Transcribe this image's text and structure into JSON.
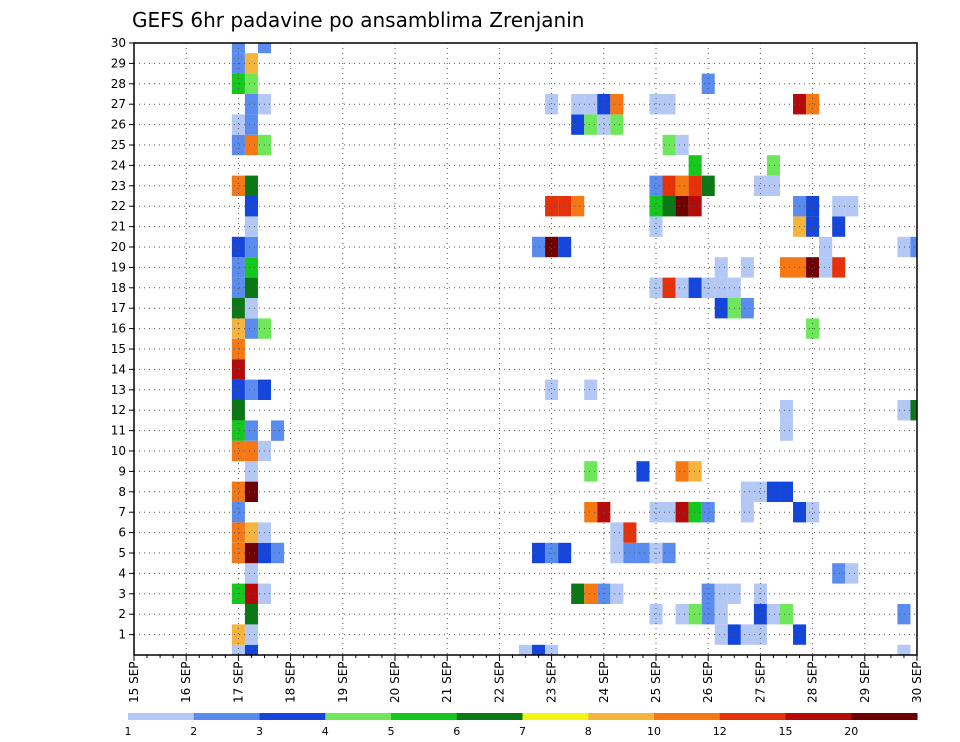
{
  "chart_data": {
    "type": "heatmap",
    "title": "GEFS 6hr padavine po ansamblima Zrenjanin",
    "xlabel": "",
    "ylabel": "",
    "x_ticks": [
      "15 SEP",
      "16 SEP",
      "17 SEP",
      "18 SEP",
      "19 SEP",
      "20 SEP",
      "21 SEP",
      "22 SEP",
      "23 SEP",
      "24 SEP",
      "25 SEP",
      "26 SEP",
      "27 SEP",
      "28 SEP",
      "29 SEP",
      "30 SEP"
    ],
    "x_range": [
      0,
      60
    ],
    "y_ticks": [
      "1",
      "2",
      "3",
      "4",
      "5",
      "6",
      "7",
      "8",
      "9",
      "10",
      "11",
      "12",
      "13",
      "14",
      "15",
      "16",
      "17",
      "18",
      "19",
      "20",
      "21",
      "22",
      "23",
      "24",
      "25",
      "26",
      "27",
      "28",
      "29",
      "30"
    ],
    "y_range": [
      0,
      30
    ],
    "grid": true,
    "legend_placement": "bottom",
    "legend": {
      "bounds": [
        "1",
        "2",
        "3",
        "4",
        "5",
        "6",
        "7",
        "8",
        "10",
        "12",
        "15",
        "20"
      ],
      "colors": [
        "#b4c8f5",
        "#5a8cf0",
        "#1446dc",
        "#6ee85a",
        "#14c81e",
        "#0a7814",
        "#f5f514",
        "#f5b43c",
        "#f57814",
        "#e6320a",
        "#b40a0a",
        "#6e0000"
      ]
    },
    "cells": [
      {
        "x": 8,
        "y": 0,
        "v": 1
      },
      {
        "x": 9,
        "y": 0,
        "v": 3
      },
      {
        "x": 8,
        "y": 1,
        "v": 8
      },
      {
        "x": 9,
        "y": 1,
        "v": 1
      },
      {
        "x": 9,
        "y": 2,
        "v": 6
      },
      {
        "x": 8,
        "y": 3,
        "v": 5
      },
      {
        "x": 9,
        "y": 3,
        "v": 15
      },
      {
        "x": 10,
        "y": 3,
        "v": 1
      },
      {
        "x": 9,
        "y": 4,
        "v": 1
      },
      {
        "x": 8,
        "y": 5,
        "v": 10
      },
      {
        "x": 9,
        "y": 5,
        "v": 20
      },
      {
        "x": 10,
        "y": 5,
        "v": 3
      },
      {
        "x": 11,
        "y": 5,
        "v": 2
      },
      {
        "x": 8,
        "y": 6,
        "v": 10
      },
      {
        "x": 9,
        "y": 6,
        "v": 8
      },
      {
        "x": 10,
        "y": 6,
        "v": 1
      },
      {
        "x": 8,
        "y": 7,
        "v": 2
      },
      {
        "x": 8,
        "y": 8,
        "v": 10
      },
      {
        "x": 9,
        "y": 8,
        "v": 20
      },
      {
        "x": 9,
        "y": 9,
        "v": 1
      },
      {
        "x": 8,
        "y": 10,
        "v": 10
      },
      {
        "x": 9,
        "y": 10,
        "v": 10
      },
      {
        "x": 10,
        "y": 10,
        "v": 1
      },
      {
        "x": 8,
        "y": 11,
        "v": 5
      },
      {
        "x": 9,
        "y": 11,
        "v": 2
      },
      {
        "x": 11,
        "y": 11,
        "v": 2
      },
      {
        "x": 8,
        "y": 12,
        "v": 6
      },
      {
        "x": 8,
        "y": 13,
        "v": 3
      },
      {
        "x": 9,
        "y": 13,
        "v": 2
      },
      {
        "x": 10,
        "y": 13,
        "v": 3
      },
      {
        "x": 8,
        "y": 14,
        "v": 15
      },
      {
        "x": 8,
        "y": 15,
        "v": 10
      },
      {
        "x": 8,
        "y": 16,
        "v": 8
      },
      {
        "x": 9,
        "y": 16,
        "v": 2
      },
      {
        "x": 10,
        "y": 16,
        "v": 4
      },
      {
        "x": 8,
        "y": 17,
        "v": 6
      },
      {
        "x": 9,
        "y": 17,
        "v": 1
      },
      {
        "x": 8,
        "y": 18,
        "v": 2
      },
      {
        "x": 9,
        "y": 18,
        "v": 6
      },
      {
        "x": 8,
        "y": 19,
        "v": 2
      },
      {
        "x": 9,
        "y": 19,
        "v": 5
      },
      {
        "x": 8,
        "y": 20,
        "v": 3
      },
      {
        "x": 9,
        "y": 20,
        "v": 2
      },
      {
        "x": 9,
        "y": 21,
        "v": 1
      },
      {
        "x": 9,
        "y": 22,
        "v": 3
      },
      {
        "x": 8,
        "y": 23,
        "v": 10
      },
      {
        "x": 9,
        "y": 23,
        "v": 6
      },
      {
        "x": 8,
        "y": 25,
        "v": 2
      },
      {
        "x": 9,
        "y": 25,
        "v": 10
      },
      {
        "x": 10,
        "y": 25,
        "v": 4
      },
      {
        "x": 8,
        "y": 26,
        "v": 1
      },
      {
        "x": 9,
        "y": 26,
        "v": 2
      },
      {
        "x": 9,
        "y": 27,
        "v": 2
      },
      {
        "x": 10,
        "y": 27,
        "v": 1
      },
      {
        "x": 8,
        "y": 28,
        "v": 5
      },
      {
        "x": 9,
        "y": 28,
        "v": 4
      },
      {
        "x": 8,
        "y": 29,
        "v": 2
      },
      {
        "x": 9,
        "y": 29,
        "v": 8
      },
      {
        "x": 8,
        "y": 30,
        "v": 2
      },
      {
        "x": 10,
        "y": 30,
        "v": 2
      },
      {
        "x": 30,
        "y": 0,
        "v": 1
      },
      {
        "x": 31,
        "y": 0,
        "v": 3
      },
      {
        "x": 32,
        "y": 0,
        "v": 1
      },
      {
        "x": 31,
        "y": 5,
        "v": 3
      },
      {
        "x": 32,
        "y": 5,
        "v": 2
      },
      {
        "x": 33,
        "y": 5,
        "v": 3
      },
      {
        "x": 32,
        "y": 13,
        "v": 1
      },
      {
        "x": 31,
        "y": 20,
        "v": 2
      },
      {
        "x": 32,
        "y": 20,
        "v": 20
      },
      {
        "x": 33,
        "y": 20,
        "v": 3
      },
      {
        "x": 32,
        "y": 22,
        "v": 12
      },
      {
        "x": 33,
        "y": 22,
        "v": 12
      },
      {
        "x": 34,
        "y": 22,
        "v": 10
      },
      {
        "x": 32,
        "y": 27,
        "v": 1
      },
      {
        "x": 34,
        "y": 3,
        "v": 6
      },
      {
        "x": 35,
        "y": 3,
        "v": 10
      },
      {
        "x": 36,
        "y": 3,
        "v": 2
      },
      {
        "x": 37,
        "y": 3,
        "v": 1
      },
      {
        "x": 35,
        "y": 7,
        "v": 10
      },
      {
        "x": 36,
        "y": 7,
        "v": 15
      },
      {
        "x": 35,
        "y": 9,
        "v": 4
      },
      {
        "x": 35,
        "y": 13,
        "v": 1
      },
      {
        "x": 34,
        "y": 26,
        "v": 3
      },
      {
        "x": 35,
        "y": 26,
        "v": 4
      },
      {
        "x": 36,
        "y": 26,
        "v": 1
      },
      {
        "x": 37,
        "y": 26,
        "v": 4
      },
      {
        "x": 34,
        "y": 27,
        "v": 1
      },
      {
        "x": 35,
        "y": 27,
        "v": 1
      },
      {
        "x": 36,
        "y": 27,
        "v": 3
      },
      {
        "x": 37,
        "y": 27,
        "v": 10
      },
      {
        "x": 37,
        "y": 5,
        "v": 1
      },
      {
        "x": 38,
        "y": 5,
        "v": 2
      },
      {
        "x": 39,
        "y": 5,
        "v": 2
      },
      {
        "x": 40,
        "y": 5,
        "v": 1
      },
      {
        "x": 41,
        "y": 5,
        "v": 2
      },
      {
        "x": 37,
        "y": 6,
        "v": 1
      },
      {
        "x": 38,
        "y": 6,
        "v": 12
      },
      {
        "x": 39,
        "y": 9,
        "v": 3
      },
      {
        "x": 40,
        "y": 2,
        "v": 1
      },
      {
        "x": 42,
        "y": 2,
        "v": 1
      },
      {
        "x": 43,
        "y": 2,
        "v": 4
      },
      {
        "x": 44,
        "y": 2,
        "v": 2
      },
      {
        "x": 45,
        "y": 2,
        "v": 1
      },
      {
        "x": 40,
        "y": 7,
        "v": 1
      },
      {
        "x": 41,
        "y": 7,
        "v": 1
      },
      {
        "x": 42,
        "y": 7,
        "v": 15
      },
      {
        "x": 43,
        "y": 7,
        "v": 5
      },
      {
        "x": 44,
        "y": 7,
        "v": 2
      },
      {
        "x": 42,
        "y": 9,
        "v": 10
      },
      {
        "x": 43,
        "y": 9,
        "v": 8
      },
      {
        "x": 40,
        "y": 18,
        "v": 1
      },
      {
        "x": 41,
        "y": 18,
        "v": 12
      },
      {
        "x": 42,
        "y": 18,
        "v": 1
      },
      {
        "x": 43,
        "y": 18,
        "v": 3
      },
      {
        "x": 44,
        "y": 18,
        "v": 1
      },
      {
        "x": 40,
        "y": 21,
        "v": 1
      },
      {
        "x": 40,
        "y": 22,
        "v": 5
      },
      {
        "x": 41,
        "y": 22,
        "v": 6
      },
      {
        "x": 42,
        "y": 22,
        "v": 20
      },
      {
        "x": 43,
        "y": 22,
        "v": 15
      },
      {
        "x": 40,
        "y": 23,
        "v": 2
      },
      {
        "x": 41,
        "y": 23,
        "v": 12
      },
      {
        "x": 42,
        "y": 23,
        "v": 10
      },
      {
        "x": 43,
        "y": 23,
        "v": 12
      },
      {
        "x": 44,
        "y": 23,
        "v": 6
      },
      {
        "x": 43,
        "y": 24,
        "v": 5
      },
      {
        "x": 41,
        "y": 25,
        "v": 4
      },
      {
        "x": 42,
        "y": 25,
        "v": 1
      },
      {
        "x": 40,
        "y": 27,
        "v": 1
      },
      {
        "x": 41,
        "y": 27,
        "v": 1
      },
      {
        "x": 44,
        "y": 28,
        "v": 2
      },
      {
        "x": 45,
        "y": 1,
        "v": 1
      },
      {
        "x": 46,
        "y": 1,
        "v": 3
      },
      {
        "x": 47,
        "y": 1,
        "v": 1
      },
      {
        "x": 44,
        "y": 3,
        "v": 2
      },
      {
        "x": 45,
        "y": 3,
        "v": 1
      },
      {
        "x": 46,
        "y": 3,
        "v": 1
      },
      {
        "x": 45,
        "y": 17,
        "v": 3
      },
      {
        "x": 46,
        "y": 17,
        "v": 4
      },
      {
        "x": 47,
        "y": 17,
        "v": 2
      },
      {
        "x": 45,
        "y": 18,
        "v": 1
      },
      {
        "x": 46,
        "y": 18,
        "v": 1
      },
      {
        "x": 45,
        "y": 19,
        "v": 1
      },
      {
        "x": 47,
        "y": 19,
        "v": 1
      },
      {
        "x": 48,
        "y": 1,
        "v": 1
      },
      {
        "x": 48,
        "y": 2,
        "v": 3
      },
      {
        "x": 49,
        "y": 2,
        "v": 1
      },
      {
        "x": 50,
        "y": 2,
        "v": 4
      },
      {
        "x": 48,
        "y": 3,
        "v": 1
      },
      {
        "x": 47,
        "y": 7,
        "v": 1
      },
      {
        "x": 47,
        "y": 8,
        "v": 1
      },
      {
        "x": 48,
        "y": 8,
        "v": 1
      },
      {
        "x": 49,
        "y": 8,
        "v": 3
      },
      {
        "x": 50,
        "y": 8,
        "v": 3
      },
      {
        "x": 51,
        "y": 7,
        "v": 3
      },
      {
        "x": 52,
        "y": 7,
        "v": 1
      },
      {
        "x": 50,
        "y": 11,
        "v": 1
      },
      {
        "x": 50,
        "y": 12,
        "v": 1
      },
      {
        "x": 52,
        "y": 16,
        "v": 4
      },
      {
        "x": 50,
        "y": 19,
        "v": 10
      },
      {
        "x": 51,
        "y": 19,
        "v": 10
      },
      {
        "x": 52,
        "y": 19,
        "v": 20
      },
      {
        "x": 53,
        "y": 19,
        "v": 1
      },
      {
        "x": 51,
        "y": 21,
        "v": 8
      },
      {
        "x": 52,
        "y": 21,
        "v": 3
      },
      {
        "x": 51,
        "y": 22,
        "v": 2
      },
      {
        "x": 52,
        "y": 22,
        "v": 3
      },
      {
        "x": 48,
        "y": 23,
        "v": 1
      },
      {
        "x": 49,
        "y": 23,
        "v": 1
      },
      {
        "x": 49,
        "y": 24,
        "v": 4
      },
      {
        "x": 51,
        "y": 27,
        "v": 15
      },
      {
        "x": 52,
        "y": 27,
        "v": 10
      },
      {
        "x": 54,
        "y": 19,
        "v": 12
      },
      {
        "x": 51,
        "y": 1,
        "v": 3
      },
      {
        "x": 54,
        "y": 4,
        "v": 2
      },
      {
        "x": 55,
        "y": 4,
        "v": 1
      },
      {
        "x": 53,
        "y": 20,
        "v": 1
      },
      {
        "x": 54,
        "y": 21,
        "v": 3
      },
      {
        "x": 54,
        "y": 22,
        "v": 1
      },
      {
        "x": 55,
        "y": 22,
        "v": 1
      },
      {
        "x": 59,
        "y": 0,
        "v": 1
      },
      {
        "x": 59,
        "y": 2,
        "v": 2
      },
      {
        "x": 59,
        "y": 12,
        "v": 1
      },
      {
        "x": 60,
        "y": 12,
        "v": 6
      },
      {
        "x": 59,
        "y": 20,
        "v": 1
      },
      {
        "x": 60,
        "y": 20,
        "v": 2
      }
    ]
  }
}
